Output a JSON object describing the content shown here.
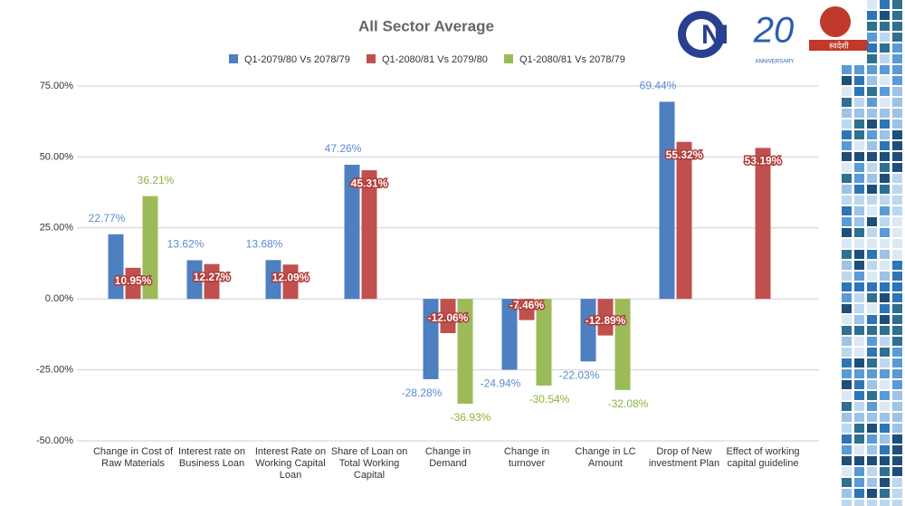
{
  "chart_data": {
    "type": "bar",
    "title": "All Sector Average",
    "categories": [
      "Change in Cost of Raw Materials",
      "Interest rate on Business Loan",
      "Interest Rate on Working Capital Loan",
      "Share of Loan on Total Working Capital",
      "Change in Demand",
      "Change in turnover",
      "Change in LC Amount",
      "Drop of New investment Plan",
      "Effect of working capital guideline"
    ],
    "series": [
      {
        "name": "Q1-2079/80 Vs 2078/79",
        "color": "#4e7fc0",
        "values": [
          22.77,
          13.62,
          13.68,
          47.26,
          -28.28,
          -24.94,
          -22.03,
          69.44,
          null
        ],
        "value_labels": [
          "22.77%",
          "13.62%",
          "13.68%",
          "47.26%",
          "-28.28%",
          "-24.94%",
          "-22.03%",
          "69.44%",
          null
        ]
      },
      {
        "name": "Q1-2080/81 Vs 2079/80",
        "color": "#c0504d",
        "values": [
          10.95,
          12.27,
          12.09,
          45.31,
          -12.06,
          -7.46,
          -12.89,
          55.32,
          53.19
        ],
        "value_labels": [
          "10.95%",
          "12.27%",
          "12.09%",
          "45.31%",
          "-12.06%",
          "-7.46%",
          "-12.89%",
          "55.32%",
          "53.19%"
        ]
      },
      {
        "name": "Q1-2080/81 Vs 2078/79",
        "color": "#9bbb59",
        "values": [
          36.21,
          null,
          null,
          null,
          -36.93,
          -30.54,
          -32.08,
          null,
          null
        ],
        "value_labels": [
          "36.21%",
          null,
          null,
          null,
          "-36.93%",
          "-30.54%",
          "-32.08%",
          null,
          null
        ]
      }
    ],
    "ylim": [
      -50,
      75
    ],
    "yticks": [
      {
        "value": -50,
        "label": "-50.00%"
      },
      {
        "value": -25,
        "label": "-25.00%"
      },
      {
        "value": 0,
        "label": "0.00%"
      },
      {
        "value": 25,
        "label": "25.00%"
      },
      {
        "value": 50,
        "label": "50.00%"
      },
      {
        "value": 75,
        "label": "75.00%"
      }
    ],
    "grid": true,
    "legend": "top"
  },
  "logos": {
    "cni": "NI",
    "anniversary": "20",
    "anniversary_caption": "ANNIVERSARY",
    "swadeshi": "स्वदेशी"
  }
}
